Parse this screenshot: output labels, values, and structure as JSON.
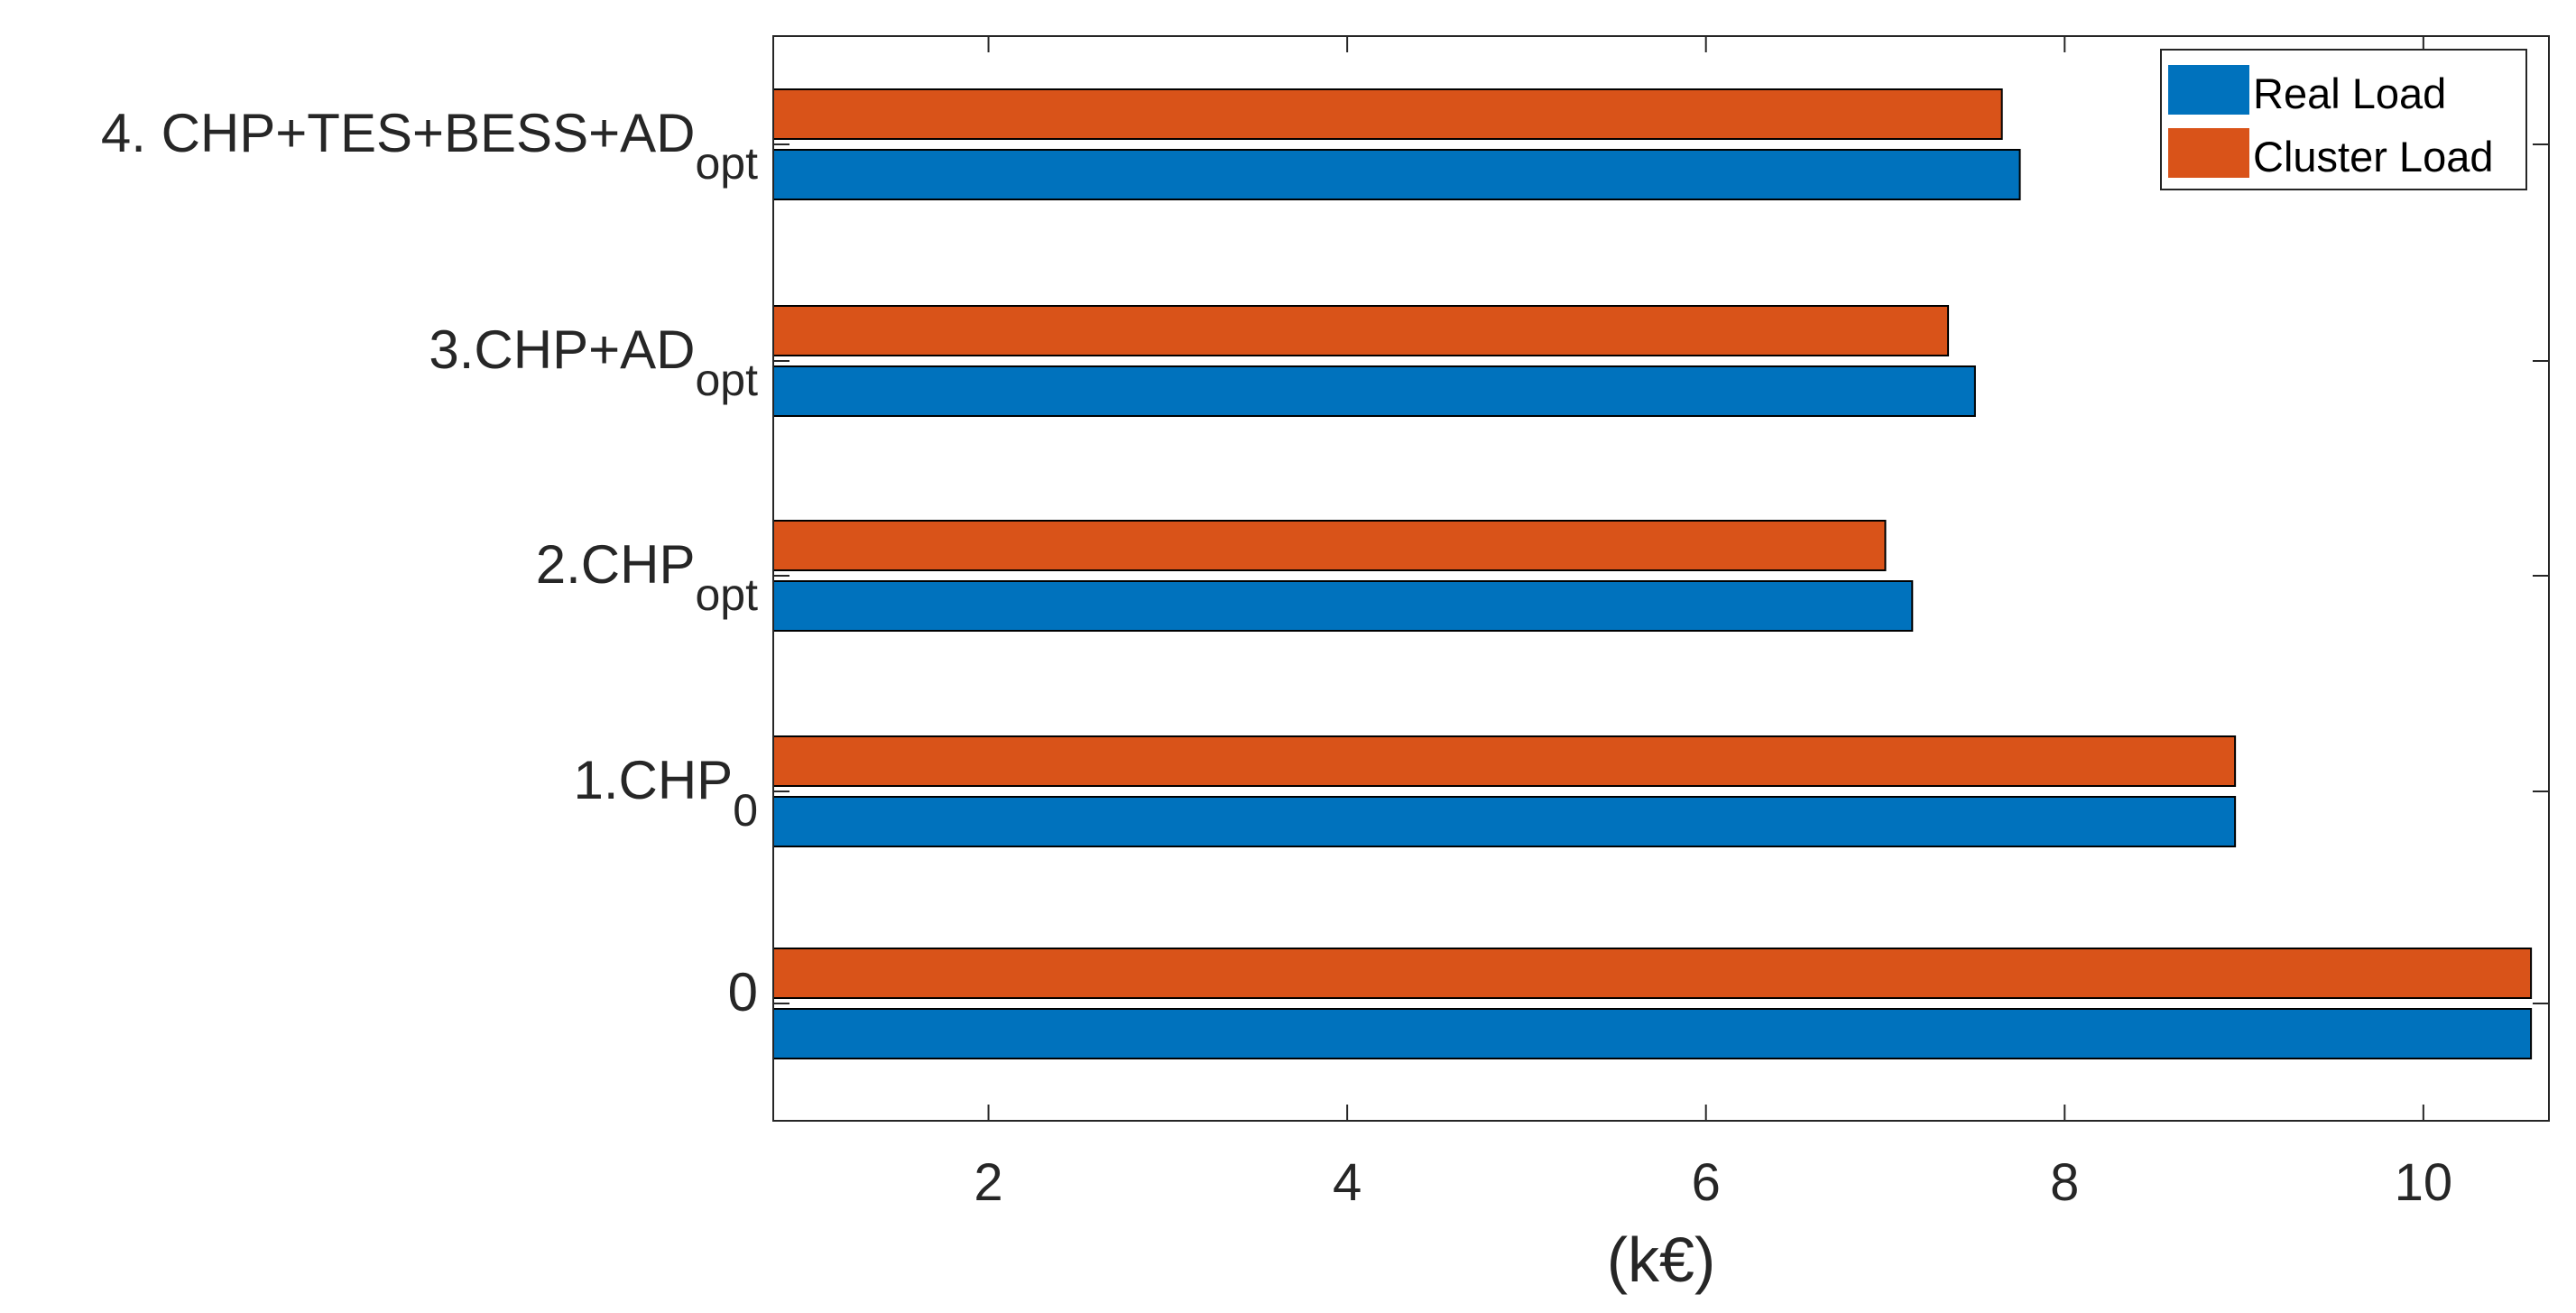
{
  "chart_data": {
    "type": "bar",
    "orientation": "horizontal",
    "categories": [
      {
        "main": "0",
        "sub": ""
      },
      {
        "main": "1.CHP",
        "sub": "0"
      },
      {
        "main": "2.CHP",
        "sub": "opt"
      },
      {
        "main": "3.CHP+AD",
        "sub": "opt"
      },
      {
        "main": "4. CHP+TES+BESS+AD",
        "sub": "opt"
      }
    ],
    "series": [
      {
        "name": "Real Load",
        "color": "#0072BD",
        "values": [
          10.6,
          8.95,
          7.15,
          7.5,
          7.75
        ]
      },
      {
        "name": "Cluster Load",
        "color": "#D95319",
        "values": [
          10.6,
          8.95,
          7.0,
          7.35,
          7.65
        ]
      }
    ],
    "xlabel": "(k€)",
    "ylabel": "",
    "title": "",
    "xlim": [
      0.8,
      10.7
    ],
    "xticks": [
      2,
      4,
      6,
      8,
      10
    ],
    "xtick_labels": [
      "2",
      "4",
      "6",
      "8",
      "10"
    ],
    "legend": {
      "position": "top-right",
      "entries": [
        "Real Load",
        "Cluster Load"
      ]
    },
    "grid": false
  }
}
